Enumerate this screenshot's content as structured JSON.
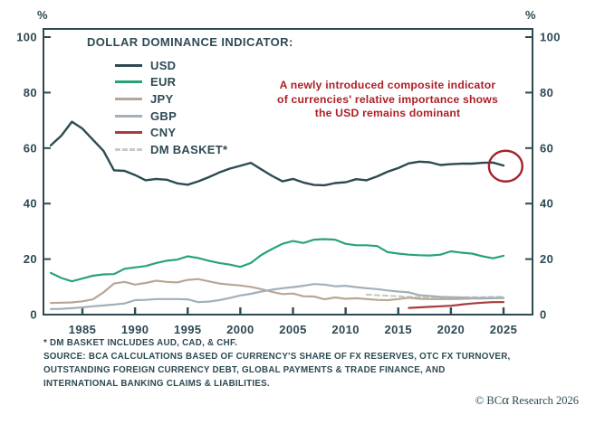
{
  "title": "DOLLAR DOMINANCE INDICATOR:",
  "axis": {
    "unit_left": "%",
    "unit_right": "%"
  },
  "annotation": {
    "color": "#ab1f26",
    "lines": [
      "A newly introduced composite indicator",
      "of currencies' relative importance shows",
      "the USD remains dominant"
    ]
  },
  "footnotes": {
    "lines": [
      "* DM BASKET INCLUDES AUD, CAD, & CHF.",
      "SOURCE: BCA CALCULATIONS BASED OF CURRENCY'S SHARE OF FX RESERVES, OTC FX TURNOVER,",
      "OUTSTANDING FOREIGN CURRENCY DEBT, GLOBAL PAYMENTS & TRADE FINANCE, AND",
      "INTERNATIONAL BANKING CLAIMS & LIABILITIES."
    ]
  },
  "copyright": {
    "prefix": "© BC",
    "alpha": "α",
    "suffix": " Research 2026"
  },
  "chart_data": {
    "type": "line",
    "title": "DOLLAR DOMINANCE INDICATOR:",
    "unit": "%",
    "axis_color": "#2d4a53",
    "grid": false,
    "legend_position": "top-left-inside",
    "xlim": [
      1981.3,
      2027.8
    ],
    "ylim": [
      0,
      103
    ],
    "x_ticks": [
      1985,
      1990,
      1995,
      2000,
      2005,
      2010,
      2015,
      2020,
      2025
    ],
    "y_ticks": [
      0,
      20,
      40,
      60,
      80,
      100
    ],
    "years_start": 1982,
    "series": [
      {
        "name": "USD",
        "color": "#2d4a53",
        "dash": null,
        "start_year": 1982,
        "values": [
          61,
          64.5,
          69.5,
          67,
          63,
          59,
          52,
          51.8,
          50.3,
          48.4,
          48.9,
          48.6,
          47.3,
          46.8,
          48,
          49.5,
          51.2,
          52.6,
          53.6,
          54.7,
          52.3,
          50,
          48,
          48.9,
          47.6,
          46.7,
          46.6,
          47.4,
          47.7,
          48.8,
          48.4,
          49.8,
          51.5,
          52.8,
          54.5,
          55.1,
          54.9,
          53.9,
          54.2,
          54.4,
          54.4,
          54.7,
          54.8,
          53.7
        ]
      },
      {
        "name": "EUR",
        "color": "#28a27c",
        "dash": null,
        "start_year": 1982,
        "values": [
          15,
          13.2,
          12,
          13,
          14,
          14.5,
          14.6,
          16.5,
          17,
          17.5,
          18.6,
          19.4,
          19.8,
          21,
          20.4,
          19.4,
          18.6,
          18,
          17.2,
          18.6,
          21.5,
          23.6,
          25.5,
          26.5,
          25.8,
          27,
          27.2,
          27,
          25.5,
          25,
          25,
          24.7,
          22.5,
          22,
          21.6,
          21.4,
          21.3,
          21.6,
          22.8,
          22.3,
          22,
          21,
          20.3,
          21.2
        ]
      },
      {
        "name": "JPY",
        "color": "#b9a795",
        "dash": null,
        "start_year": 1982,
        "values": [
          4.2,
          4.3,
          4.4,
          4.8,
          5.5,
          8,
          11.2,
          11.8,
          10.8,
          11.4,
          12.2,
          11.8,
          11.6,
          12.5,
          12.8,
          12,
          11.2,
          10.8,
          10.5,
          10,
          9.2,
          8.2,
          7.4,
          7.6,
          6.6,
          6.5,
          5.5,
          6.2,
          5.7,
          5.9,
          5.6,
          5.3,
          5.2,
          5.6,
          6.1,
          5.7,
          5.6,
          5.6,
          5.6,
          5.7,
          5.8,
          5.8,
          5.9,
          6
        ]
      },
      {
        "name": "GBP",
        "color": "#a3afb9",
        "dash": null,
        "start_year": 1982,
        "values": [
          2,
          2.1,
          2.3,
          2.6,
          3,
          3.3,
          3.6,
          4,
          5.2,
          5.3,
          5.6,
          5.6,
          5.6,
          5.5,
          4.5,
          4.7,
          5.2,
          6,
          6.9,
          7.5,
          8.3,
          9,
          9.5,
          9.9,
          10.4,
          11,
          10.8,
          10.2,
          10.4,
          9.9,
          9.5,
          9.2,
          8.7,
          8.3,
          8,
          7,
          6.7,
          6.4,
          6.3,
          6.2,
          6,
          6,
          6,
          6.1
        ]
      },
      {
        "name": "CNY",
        "color": "#a93a3e",
        "dash": null,
        "start_year": 2016,
        "values": [
          2.4,
          2.6,
          2.8,
          3,
          3.2,
          3.6,
          4,
          4.3,
          4.5,
          4.5
        ]
      },
      {
        "name": "DM BASKET*",
        "color": "#c9cbc3",
        "dash": "5 4",
        "start_year": 2012,
        "values": [
          7.2,
          7,
          6.8,
          6.6,
          6.4,
          6.3,
          6.3,
          6.2,
          6.2,
          6.2,
          6.3,
          6.3,
          6.4,
          6.4
        ]
      }
    ],
    "highlight_circle": {
      "year": 2025.2,
      "value": 53.5,
      "color": "#a4232a"
    }
  }
}
